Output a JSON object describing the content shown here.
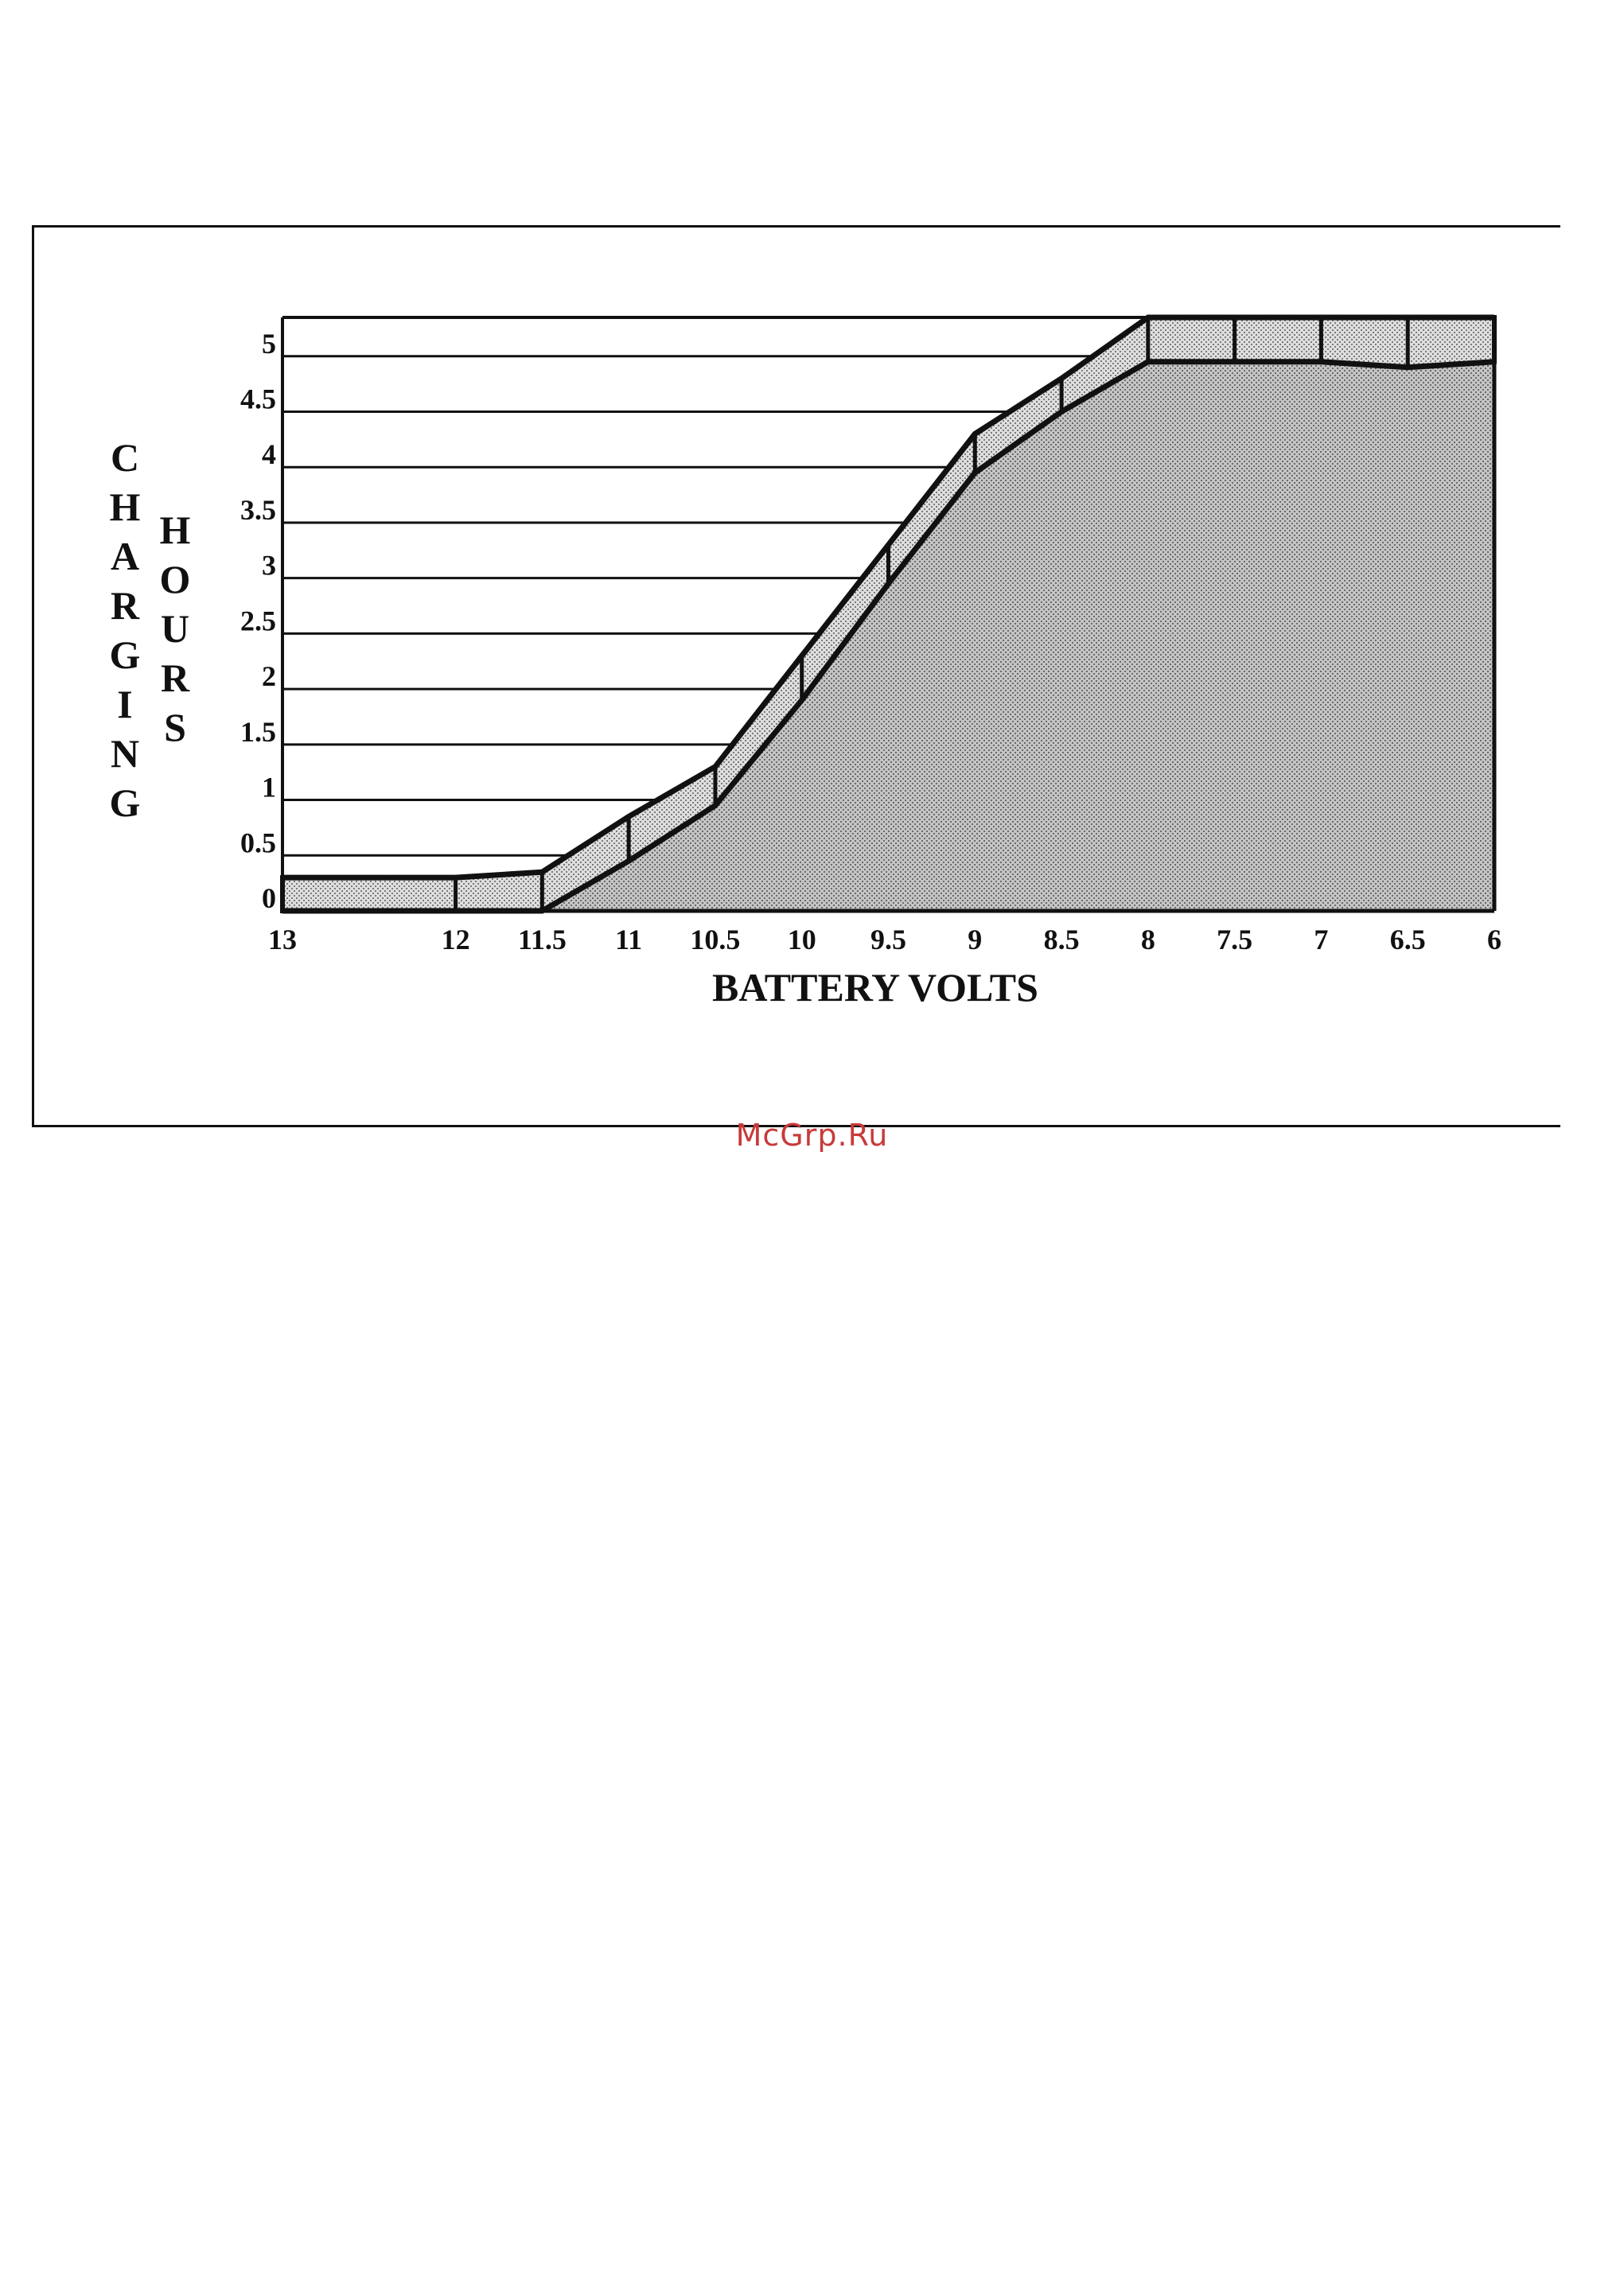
{
  "chart_data": {
    "type": "area",
    "xlabel": "BATTERY VOLTS",
    "ylabel_left": "CHARGING",
    "ylabel_right": "HOURS",
    "x_ticks": [
      "13",
      "12",
      "11.5",
      "11",
      "10.5",
      "10",
      "9.5",
      "9",
      "8.5",
      "8",
      "7.5",
      "7",
      "6.5",
      "6"
    ],
    "y_ticks": [
      "0",
      "0.5",
      "1",
      "1.5",
      "2",
      "2.5",
      "3",
      "3.5",
      "4",
      "4.5",
      "5"
    ],
    "xlim": [
      13,
      6
    ],
    "ylim": [
      0,
      5.35
    ],
    "grid": true,
    "series": [
      {
        "role": "upper",
        "x": [
          13,
          12,
          11.5,
          11,
          10.5,
          10,
          9.5,
          9,
          8.5,
          8,
          7.5,
          7,
          6.5,
          6
        ],
        "y": [
          0.3,
          0.3,
          0.35,
          0.85,
          1.3,
          2.3,
          3.3,
          4.3,
          4.8,
          5.35,
          5.35,
          5.35,
          5.35,
          5.35
        ]
      },
      {
        "role": "lower",
        "x": [
          13,
          12,
          11.5,
          11,
          10.5,
          10,
          9.5,
          9,
          8.5,
          8,
          7.5,
          7,
          6.5,
          6
        ],
        "y": [
          0,
          0,
          0,
          0.45,
          0.95,
          1.9,
          2.95,
          3.95,
          4.5,
          4.95,
          4.95,
          4.95,
          4.9,
          4.95
        ]
      }
    ]
  },
  "watermark": "McGrp.Ru"
}
